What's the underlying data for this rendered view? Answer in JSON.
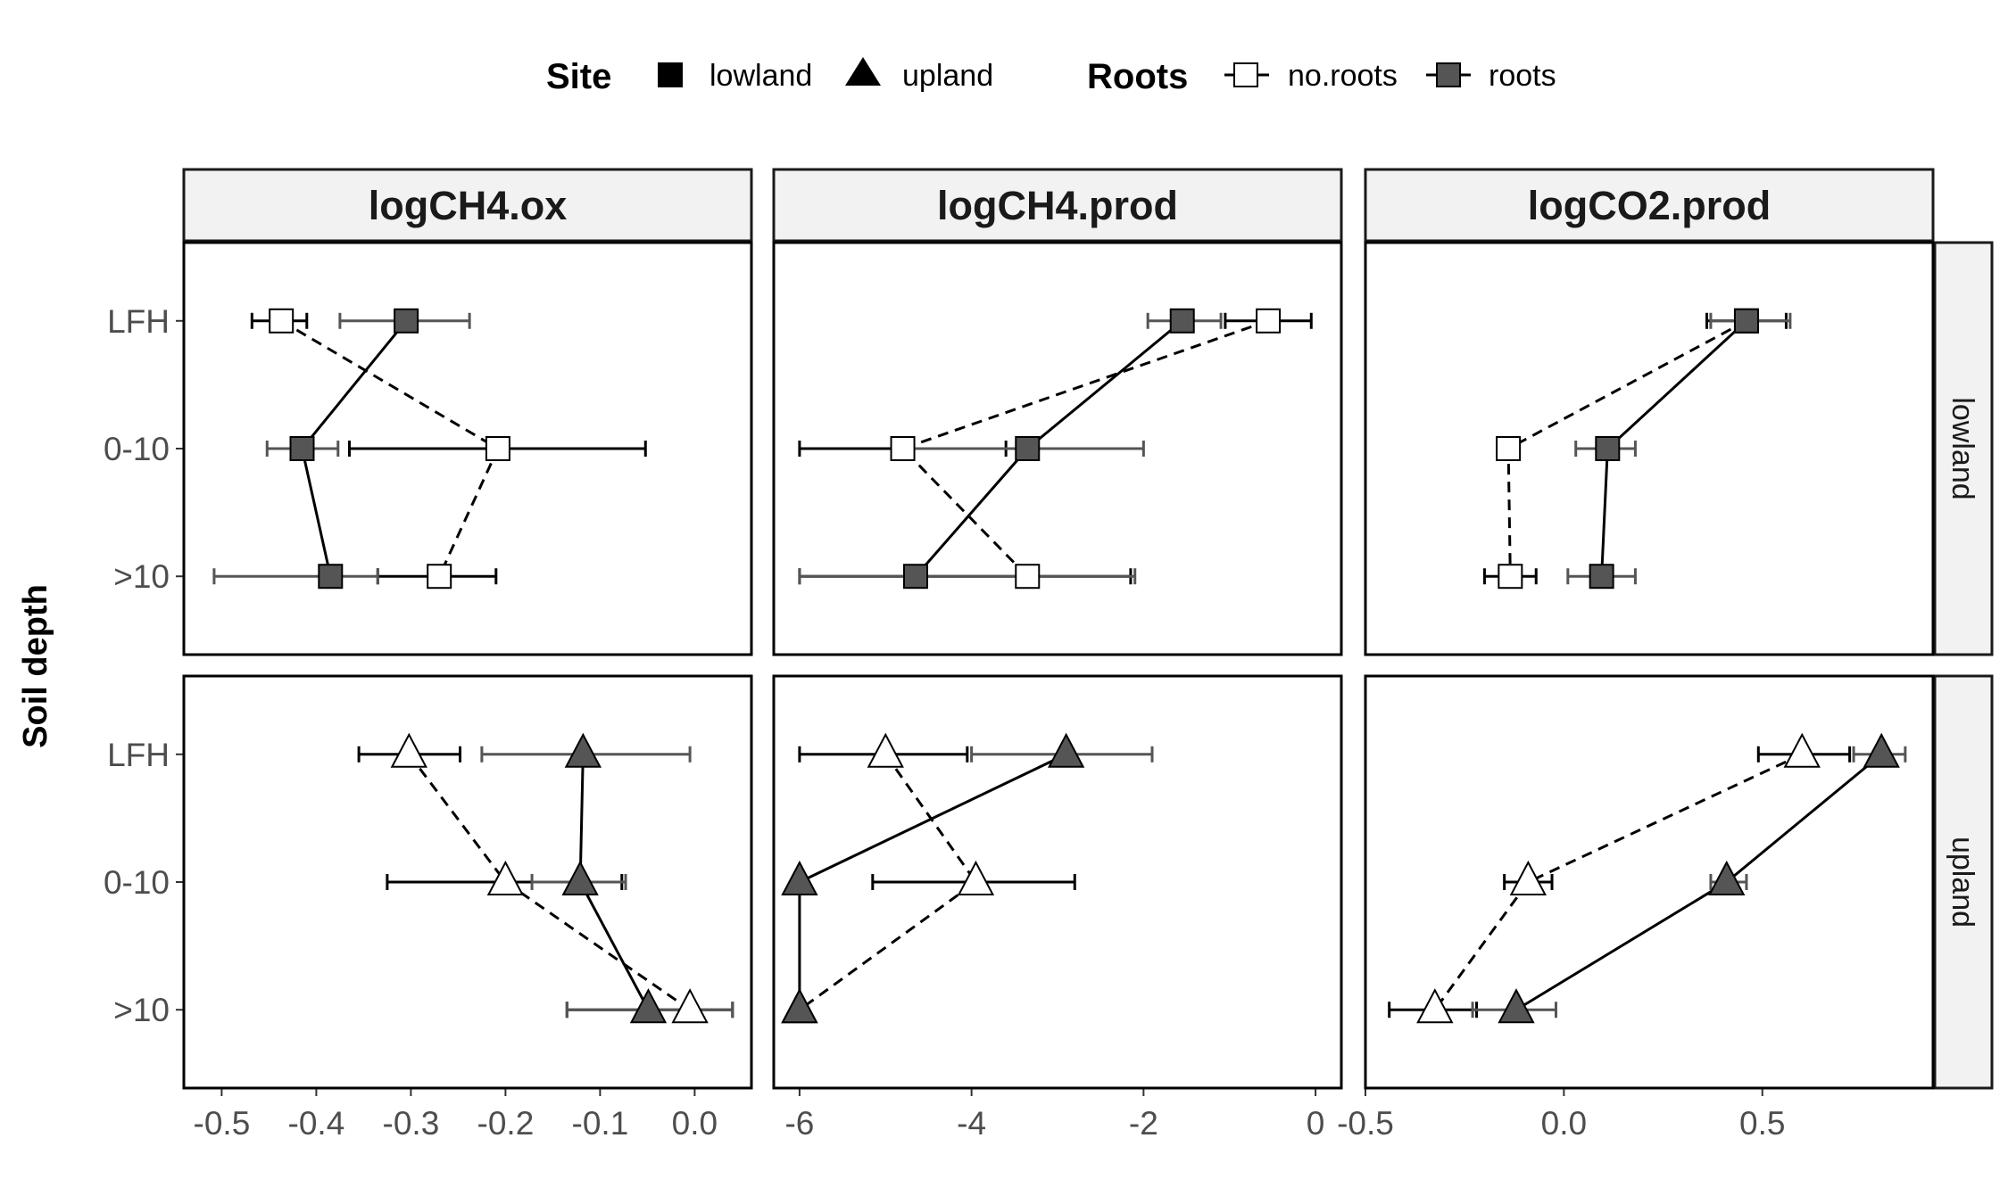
{
  "chart_data": {
    "type": "scatter",
    "description_type": "faceted dot-and-line plot with horizontal error bars",
    "ylabel": "Soil depth",
    "xlabel": "",
    "y_categories": [
      "LFH",
      "0-10",
      ">10"
    ],
    "legend": {
      "position": "top",
      "site_title": "Site",
      "site_entries": [
        {
          "label": "lowland",
          "shape": "square"
        },
        {
          "label": "upland",
          "shape": "triangle"
        }
      ],
      "roots_title": "Roots",
      "roots_entries": [
        {
          "label": "no.roots",
          "fill": "#ffffff",
          "linestyle": "dashed"
        },
        {
          "label": "roots",
          "fill": "#555555",
          "linestyle": "solid"
        }
      ]
    },
    "colors": {
      "roots_fill": "#555555",
      "no_roots_fill": "#ffffff",
      "strip_bg": "#f2f2f2",
      "errorbar_roots": "#555555",
      "errorbar_no_roots": "#000000"
    },
    "columns": [
      {
        "name": "logCH4.ox",
        "xlim": [
          -0.54,
          0.06
        ],
        "ticks": [
          -0.5,
          -0.4,
          -0.3,
          -0.2,
          -0.1,
          0.0
        ],
        "tick_labels": [
          "-0.5",
          "-0.4",
          "-0.3",
          "-0.2",
          "-0.1",
          "0.0"
        ]
      },
      {
        "name": "logCH4.prod",
        "xlim": [
          -6.3,
          0.3
        ],
        "ticks": [
          -6,
          -4,
          -2,
          0
        ],
        "tick_labels": [
          "-6",
          "-4",
          "-2",
          "0"
        ]
      },
      {
        "name": "logCO2.prod",
        "xlim": [
          -0.5,
          0.93
        ],
        "ticks": [
          -0.5,
          0.0,
          0.5
        ],
        "tick_labels": [
          "-0.5",
          "0.0",
          "0.5"
        ]
      }
    ],
    "rows": [
      "lowland",
      "upland"
    ],
    "panels": [
      {
        "column": "logCH4.ox",
        "row": "lowland",
        "series": [
          {
            "name": "no.roots",
            "points": [
              {
                "depth": "LFH",
                "x": -0.437,
                "lo": -0.468,
                "hi": -0.41
              },
              {
                "depth": "0-10",
                "x": -0.208,
                "lo": -0.365,
                "hi": -0.052
              },
              {
                "depth": ">10",
                "x": -0.27,
                "lo": -0.335,
                "hi": -0.21
              }
            ]
          },
          {
            "name": "roots",
            "points": [
              {
                "depth": "LFH",
                "x": -0.305,
                "lo": -0.375,
                "hi": -0.238
              },
              {
                "depth": "0-10",
                "x": -0.415,
                "lo": -0.452,
                "hi": -0.377
              },
              {
                "depth": ">10",
                "x": -0.385,
                "lo": -0.508,
                "hi": -0.335
              }
            ]
          }
        ]
      },
      {
        "column": "logCH4.ox",
        "row": "upland",
        "series": [
          {
            "name": "no.roots",
            "points": [
              {
                "depth": "LFH",
                "x": -0.302,
                "lo": -0.355,
                "hi": -0.248
              },
              {
                "depth": "0-10",
                "x": -0.2,
                "lo": -0.325,
                "hi": -0.077
              },
              {
                "depth": ">10",
                "x": -0.005,
                "lo": -0.135,
                "hi": 0.04
              }
            ]
          },
          {
            "name": "roots",
            "points": [
              {
                "depth": "LFH",
                "x": -0.118,
                "lo": -0.225,
                "hi": -0.005
              },
              {
                "depth": "0-10",
                "x": -0.121,
                "lo": -0.172,
                "hi": -0.073
              },
              {
                "depth": ">10",
                "x": -0.049,
                "lo": -0.135,
                "hi": 0.04
              }
            ]
          }
        ]
      },
      {
        "column": "logCH4.prod",
        "row": "lowland",
        "series": [
          {
            "name": "no.roots",
            "points": [
              {
                "depth": "LFH",
                "x": -0.55,
                "lo": -1.05,
                "hi": -0.05
              },
              {
                "depth": "0-10",
                "x": -4.8,
                "lo": -6.0,
                "hi": -3.6
              },
              {
                "depth": ">10",
                "x": -3.35,
                "lo": -6.0,
                "hi": -2.15
              }
            ]
          },
          {
            "name": "roots",
            "points": [
              {
                "depth": "LFH",
                "x": -1.55,
                "lo": -1.95,
                "hi": -1.1
              },
              {
                "depth": "0-10",
                "x": -3.35,
                "lo": -4.7,
                "hi": -2.0
              },
              {
                "depth": ">10",
                "x": -4.65,
                "lo": -6.0,
                "hi": -2.1
              }
            ]
          }
        ]
      },
      {
        "column": "logCH4.prod",
        "row": "upland",
        "series": [
          {
            "name": "no.roots",
            "points": [
              {
                "depth": "LFH",
                "x": -5.0,
                "lo": -6.0,
                "hi": -4.05
              },
              {
                "depth": "0-10",
                "x": -3.95,
                "lo": -5.15,
                "hi": -2.8
              },
              {
                "depth": ">10",
                "x": -6.0,
                "lo": -6.0,
                "hi": -6.0
              }
            ]
          },
          {
            "name": "roots",
            "points": [
              {
                "depth": "LFH",
                "x": -2.9,
                "lo": -4.0,
                "hi": -1.9
              },
              {
                "depth": "0-10",
                "x": -6.0,
                "lo": -6.0,
                "hi": -6.0
              },
              {
                "depth": ">10",
                "x": -6.0,
                "lo": -6.0,
                "hi": -6.0
              }
            ]
          }
        ]
      },
      {
        "column": "logCO2.prod",
        "row": "lowland",
        "series": [
          {
            "name": "no.roots",
            "points": [
              {
                "depth": "LFH",
                "x": 0.46,
                "lo": 0.36,
                "hi": 0.56
              },
              {
                "depth": "0-10",
                "x": -0.14,
                "lo": -0.16,
                "hi": -0.12
              },
              {
                "depth": ">10",
                "x": -0.135,
                "lo": -0.2,
                "hi": -0.07
              }
            ]
          },
          {
            "name": "roots",
            "points": [
              {
                "depth": "LFH",
                "x": 0.46,
                "lo": 0.37,
                "hi": 0.57
              },
              {
                "depth": "0-10",
                "x": 0.11,
                "lo": 0.03,
                "hi": 0.18
              },
              {
                "depth": ">10",
                "x": 0.095,
                "lo": 0.01,
                "hi": 0.18
              }
            ]
          }
        ]
      },
      {
        "column": "logCO2.prod",
        "row": "upland",
        "series": [
          {
            "name": "no.roots",
            "points": [
              {
                "depth": "LFH",
                "x": 0.6,
                "lo": 0.49,
                "hi": 0.72
              },
              {
                "depth": "0-10",
                "x": -0.09,
                "lo": -0.15,
                "hi": -0.03
              },
              {
                "depth": ">10",
                "x": -0.325,
                "lo": -0.44,
                "hi": -0.22
              }
            ]
          },
          {
            "name": "roots",
            "points": [
              {
                "depth": "LFH",
                "x": 0.8,
                "lo": 0.73,
                "hi": 0.86
              },
              {
                "depth": "0-10",
                "x": 0.41,
                "lo": 0.37,
                "hi": 0.46
              },
              {
                "depth": ">10",
                "x": -0.12,
                "lo": -0.23,
                "hi": -0.02
              }
            ]
          }
        ]
      }
    ]
  }
}
